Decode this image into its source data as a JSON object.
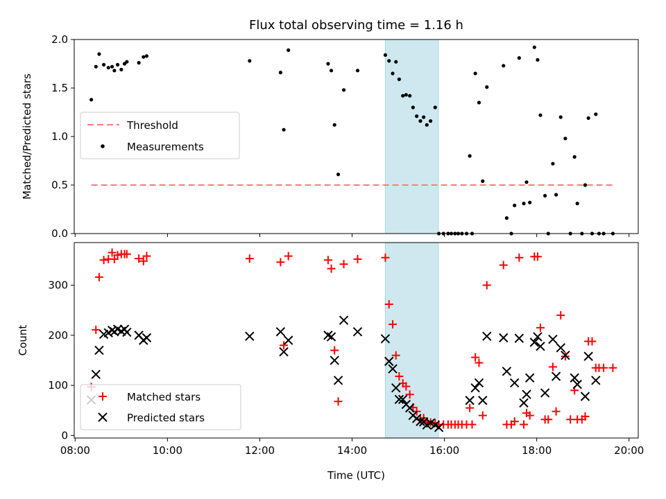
{
  "chart_data": [
    {
      "type": "scatter",
      "panel": "top",
      "title": "Flux total observing time = 1.16 h",
      "ylabel": "Matched/Predicted stars",
      "xlabel": "",
      "x_unit": "hours (UTC)",
      "xlim": [
        7.98,
        20.2
      ],
      "ylim": [
        0,
        2.0
      ],
      "yticks": [
        0.0,
        0.5,
        1.0,
        1.5,
        2.0
      ],
      "ytick_labels": [
        "0.0",
        "0.5",
        "1.0",
        "1.5",
        "2.0"
      ],
      "shaded_span": [
        14.72,
        15.87
      ],
      "shaded_color": "#cfe8ef",
      "legend_position": "center-left",
      "threshold": {
        "name": "Threshold",
        "value": 0.5,
        "x_range": [
          8.35,
          19.65
        ],
        "color": "#ff7a7a"
      },
      "series": [
        {
          "name": "Measurements",
          "color": "#000000",
          "x": [
            8.35,
            8.45,
            8.52,
            8.62,
            8.72,
            8.8,
            8.85,
            8.92,
            9.0,
            9.07,
            9.12,
            9.38,
            9.48,
            9.55,
            11.78,
            12.45,
            12.52,
            12.62,
            13.48,
            13.55,
            13.62,
            13.7,
            13.82,
            14.12,
            14.72,
            14.8,
            14.88,
            14.95,
            15.02,
            15.1,
            15.17,
            15.25,
            15.32,
            15.4,
            15.48,
            15.55,
            15.62,
            15.7,
            15.8,
            15.88,
            15.98,
            16.08,
            16.15,
            16.23,
            16.3,
            16.38,
            16.48,
            16.55,
            16.6,
            16.67,
            16.75,
            16.83,
            16.92,
            17.28,
            17.35,
            17.45,
            17.52,
            17.62,
            17.72,
            17.78,
            17.85,
            17.95,
            18.02,
            18.08,
            18.18,
            18.25,
            18.35,
            18.42,
            18.52,
            18.62,
            18.73,
            18.82,
            18.88,
            18.98,
            19.05,
            19.12,
            19.2,
            19.28,
            19.35,
            19.45,
            19.65
          ],
          "y": [
            1.38,
            1.72,
            1.85,
            1.74,
            1.71,
            1.72,
            1.68,
            1.74,
            1.69,
            1.75,
            1.77,
            1.76,
            1.82,
            1.83,
            1.78,
            1.66,
            1.07,
            1.89,
            1.75,
            1.68,
            1.12,
            0.61,
            1.48,
            1.68,
            1.84,
            1.78,
            1.65,
            1.77,
            1.59,
            1.42,
            1.43,
            1.42,
            1.3,
            1.21,
            1.16,
            1.2,
            1.12,
            1.16,
            1.3,
            0.0,
            0.0,
            0.0,
            0.0,
            0.0,
            0.0,
            0.0,
            0.0,
            0.8,
            0.0,
            1.65,
            1.35,
            0.54,
            1.51,
            1.73,
            0.16,
            0.0,
            0.29,
            1.81,
            0.31,
            0.53,
            0.32,
            1.92,
            1.79,
            1.22,
            0.39,
            0.0,
            0.72,
            0.4,
            1.2,
            0.98,
            0.0,
            0.79,
            0.31,
            0.0,
            0.5,
            1.19,
            0.0,
            1.23,
            0.0,
            0.0,
            0.0
          ]
        }
      ]
    },
    {
      "type": "scatter",
      "panel": "bottom",
      "xlabel": "Time (UTC)",
      "ylabel": "Count",
      "x_unit": "hours (UTC)",
      "xlim": [
        7.98,
        20.2
      ],
      "ylim": [
        -5,
        385
      ],
      "xticks": [
        8,
        10,
        12,
        14,
        16,
        18,
        20
      ],
      "xtick_labels": [
        "08:00",
        "10:00",
        "12:00",
        "14:00",
        "16:00",
        "18:00",
        "20:00"
      ],
      "yticks": [
        0,
        100,
        200,
        300
      ],
      "ytick_labels": [
        "0",
        "100",
        "200",
        "300"
      ],
      "shaded_span": [
        14.72,
        15.87
      ],
      "shaded_color": "#cfe8ef",
      "legend_position": "lower-left",
      "series": [
        {
          "name": "Matched stars",
          "color": "#ff0000",
          "marker": "plus",
          "x": [
            8.35,
            8.45,
            8.52,
            8.62,
            8.72,
            8.8,
            8.85,
            8.92,
            9.0,
            9.07,
            9.12,
            9.38,
            9.48,
            9.55,
            11.78,
            12.45,
            12.52,
            12.62,
            13.48,
            13.55,
            13.62,
            13.7,
            13.82,
            14.12,
            14.72,
            14.8,
            14.88,
            14.95,
            15.02,
            15.1,
            15.17,
            15.25,
            15.32,
            15.4,
            15.48,
            15.55,
            15.62,
            15.7,
            15.8,
            15.88,
            15.98,
            16.08,
            16.15,
            16.23,
            16.3,
            16.38,
            16.48,
            16.55,
            16.6,
            16.67,
            16.75,
            16.83,
            16.92,
            17.28,
            17.35,
            17.45,
            17.52,
            17.62,
            17.72,
            17.78,
            17.85,
            17.95,
            18.02,
            18.08,
            18.18,
            18.25,
            18.35,
            18.42,
            18.52,
            18.62,
            18.73,
            18.82,
            18.88,
            18.98,
            19.05,
            19.12,
            19.2,
            19.28,
            19.35,
            19.45,
            19.65
          ],
          "y": [
            97,
            211,
            316,
            350,
            352,
            365,
            352,
            360,
            362,
            362,
            362,
            353,
            348,
            358,
            353,
            346,
            180,
            358,
            350,
            333,
            170,
            68,
            342,
            352,
            355,
            262,
            222,
            160,
            118,
            104,
            98,
            82,
            56,
            48,
            32,
            35,
            27,
            26,
            25,
            22,
            22,
            22,
            22,
            22,
            22,
            22,
            22,
            55,
            22,
            156,
            145,
            40,
            300,
            340,
            22,
            22,
            28,
            355,
            22,
            45,
            40,
            357,
            357,
            215,
            32,
            32,
            137,
            48,
            240,
            158,
            32,
            90,
            32,
            32,
            38,
            188,
            188,
            135,
            135,
            135,
            135
          ]
        },
        {
          "name": "Predicted stars",
          "color": "#000000",
          "marker": "x",
          "x": [
            8.35,
            8.45,
            8.52,
            8.62,
            8.72,
            8.8,
            8.85,
            8.92,
            9.0,
            9.07,
            9.12,
            9.38,
            9.48,
            9.55,
            11.78,
            12.45,
            12.52,
            12.62,
            13.48,
            13.55,
            13.62,
            13.7,
            13.82,
            14.12,
            14.72,
            14.8,
            14.88,
            14.95,
            15.02,
            15.1,
            15.17,
            15.25,
            15.32,
            15.4,
            15.48,
            15.55,
            15.62,
            15.7,
            15.8,
            15.88,
            16.55,
            16.67,
            16.75,
            16.83,
            16.92,
            17.28,
            17.35,
            17.52,
            17.62,
            17.72,
            17.78,
            17.85,
            17.95,
            18.02,
            18.08,
            18.18,
            18.35,
            18.42,
            18.52,
            18.62,
            18.82,
            18.88,
            19.05,
            19.12,
            19.28
          ],
          "y": [
            71,
            122,
            170,
            202,
            205,
            210,
            207,
            212,
            208,
            212,
            206,
            200,
            190,
            195,
            198,
            207,
            167,
            190,
            200,
            197,
            150,
            110,
            230,
            207,
            193,
            148,
            133,
            95,
            72,
            72,
            62,
            55,
            40,
            34,
            28,
            27,
            21,
            25,
            21,
            16,
            70,
            95,
            105,
            70,
            198,
            195,
            128,
            105,
            194,
            65,
            82,
            115,
            186,
            197,
            178,
            85,
            192,
            118,
            175,
            160,
            115,
            102,
            78,
            158,
            110
          ]
        }
      ]
    }
  ]
}
